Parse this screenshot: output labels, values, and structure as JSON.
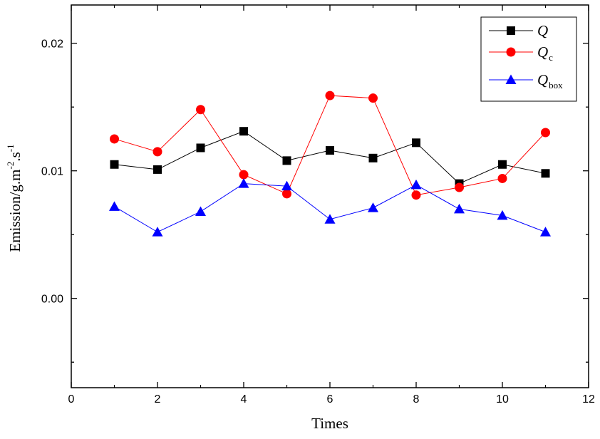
{
  "chart_data": {
    "type": "line",
    "xlabel": "Times",
    "ylabel": {
      "base": "Emission/g.m",
      "exp1": "-2",
      "mid": ".s",
      "exp2": "-1"
    },
    "xlim": [
      0,
      12
    ],
    "ylim": [
      -0.007,
      0.023
    ],
    "xticks": [
      0,
      2,
      4,
      6,
      8,
      10,
      12
    ],
    "xtick_labels": [
      "0",
      "2",
      "4",
      "6",
      "8",
      "10",
      "12"
    ],
    "yticks": [
      0.0,
      0.01,
      0.02
    ],
    "ytick_labels": [
      "0.00",
      "0.01",
      "0.02"
    ],
    "legend_position": "top-right",
    "x": [
      1,
      2,
      3,
      4,
      5,
      6,
      7,
      8,
      9,
      10,
      11
    ],
    "series": [
      {
        "name": "Q",
        "label_main": "Q",
        "label_sub": "",
        "color": "#000000",
        "marker": "square",
        "values": [
          0.0105,
          0.0101,
          0.0118,
          0.0131,
          0.0108,
          0.0116,
          0.011,
          0.0122,
          0.009,
          0.0105,
          0.0098
        ]
      },
      {
        "name": "Qc",
        "label_main": "Q",
        "label_sub": "c",
        "color": "#ff0000",
        "marker": "circle",
        "values": [
          0.0125,
          0.0115,
          0.0148,
          0.0097,
          0.0082,
          0.0159,
          0.0157,
          0.0081,
          0.0087,
          0.0094,
          0.013
        ]
      },
      {
        "name": "Qbox",
        "label_main": "Q",
        "label_sub": "box",
        "color": "#0000ff",
        "marker": "triangle",
        "values": [
          0.0072,
          0.0052,
          0.0068,
          0.009,
          0.0088,
          0.0062,
          0.0071,
          0.0089,
          0.007,
          0.0065,
          0.0052
        ]
      }
    ]
  }
}
